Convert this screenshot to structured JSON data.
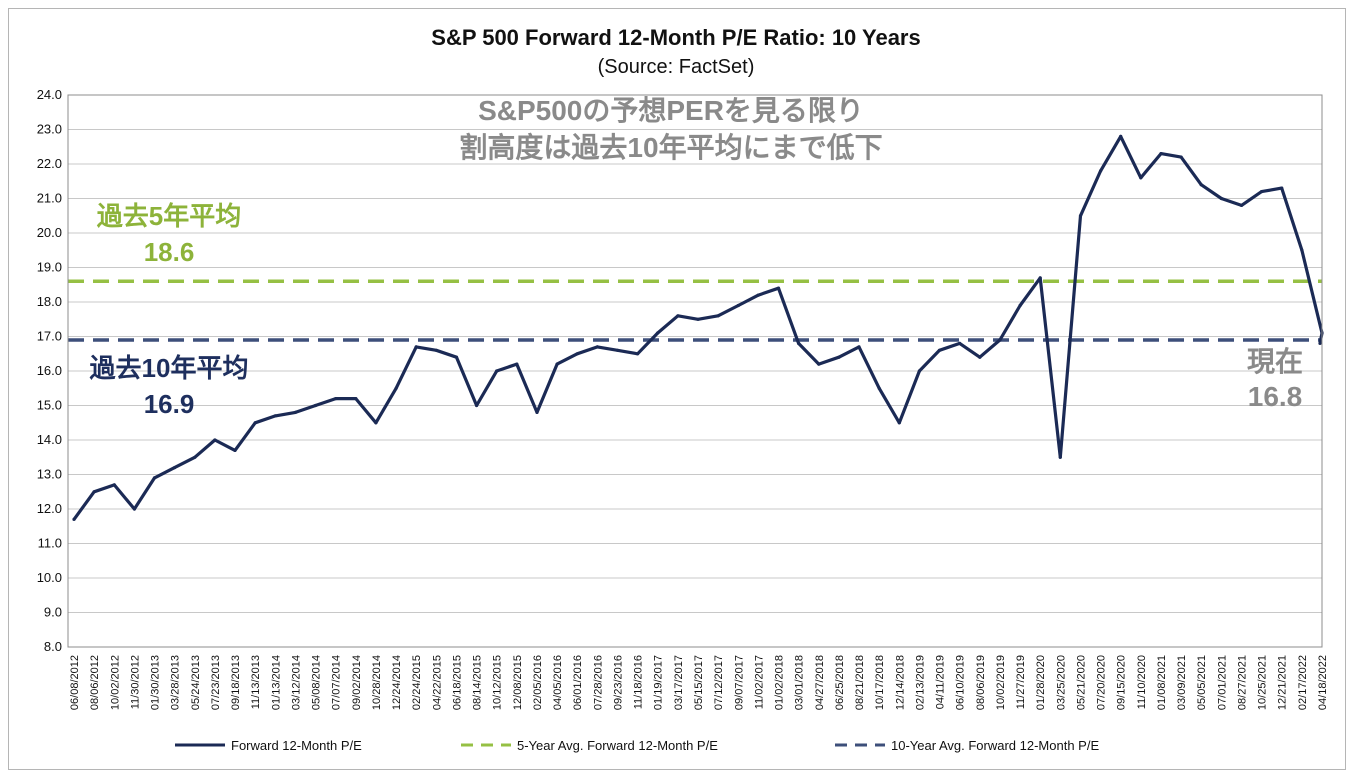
{
  "chart_data": {
    "type": "line",
    "title": "S&P 500 Forward 12-Month P/E Ratio: 10 Years",
    "subtitle": "(Source: FactSet)",
    "ylim": [
      8.0,
      24.0
    ],
    "yticks": [
      "24.0",
      "23.0",
      "22.0",
      "21.0",
      "20.0",
      "19.0",
      "18.0",
      "17.0",
      "16.0",
      "15.0",
      "14.0",
      "13.0",
      "12.0",
      "11.0",
      "10.0",
      "9.0",
      "8.0"
    ],
    "grid": true,
    "legend_position": "bottom",
    "x_tick_labels": [
      "06/08/2012",
      "08/06/2012",
      "10/02/2012",
      "11/30/2012",
      "01/30/2013",
      "03/28/2013",
      "05/24/2013",
      "07/23/2013",
      "09/18/2013",
      "11/13/2013",
      "01/13/2014",
      "03/12/2014",
      "05/08/2014",
      "07/07/2014",
      "09/02/2014",
      "10/28/2014",
      "12/24/2014",
      "02/24/2015",
      "04/22/2015",
      "06/18/2015",
      "08/14/2015",
      "10/12/2015",
      "12/08/2015",
      "02/05/2016",
      "04/05/2016",
      "06/01/2016",
      "07/28/2016",
      "09/23/2016",
      "11/18/2016",
      "01/19/2017",
      "03/17/2017",
      "05/15/2017",
      "07/12/2017",
      "09/07/2017",
      "11/02/2017",
      "01/02/2018",
      "03/01/2018",
      "04/27/2018",
      "06/25/2018",
      "08/21/2018",
      "10/17/2018",
      "12/14/2018",
      "02/13/2019",
      "04/11/2019",
      "06/10/2019",
      "08/06/2019",
      "10/02/2019",
      "11/27/2019",
      "01/28/2020",
      "03/25/2020",
      "05/21/2020",
      "07/20/2020",
      "09/15/2020",
      "11/10/2020",
      "01/08/2021",
      "03/09/2021",
      "05/05/2021",
      "07/01/2021",
      "08/27/2021",
      "10/25/2021",
      "12/21/2021",
      "02/17/2022",
      "04/18/2022"
    ],
    "series": [
      {
        "name": "Forward 12-Month P/E",
        "color": "#1b2a55",
        "style": "solid",
        "x": [
          "06/08/2012",
          "08/06/2012",
          "10/02/2012",
          "11/30/2012",
          "01/30/2013",
          "03/28/2013",
          "05/24/2013",
          "07/23/2013",
          "09/18/2013",
          "11/13/2013",
          "01/13/2014",
          "03/12/2014",
          "05/08/2014",
          "07/07/2014",
          "09/02/2014",
          "10/28/2014",
          "12/24/2014",
          "02/24/2015",
          "04/22/2015",
          "06/18/2015",
          "08/14/2015",
          "10/12/2015",
          "12/08/2015",
          "02/05/2016",
          "04/05/2016",
          "06/01/2016",
          "07/28/2016",
          "09/23/2016",
          "11/18/2016",
          "01/19/2017",
          "03/17/2017",
          "05/15/2017",
          "07/12/2017",
          "09/07/2017",
          "11/02/2017",
          "01/02/2018",
          "03/01/2018",
          "04/27/2018",
          "06/25/2018",
          "08/21/2018",
          "10/17/2018",
          "12/14/2018",
          "02/13/2019",
          "04/11/2019",
          "06/10/2019",
          "08/06/2019",
          "10/02/2019",
          "11/27/2019",
          "01/28/2020",
          "03/25/2020",
          "05/21/2020",
          "07/20/2020",
          "09/15/2020",
          "11/10/2020",
          "01/08/2021",
          "03/09/2021",
          "05/05/2021",
          "07/01/2021",
          "08/27/2021",
          "10/25/2021",
          "12/21/2021",
          "02/17/2022",
          "04/18/2022"
        ],
        "values": [
          11.7,
          12.5,
          12.7,
          12.0,
          12.9,
          13.2,
          13.5,
          14.0,
          13.7,
          14.5,
          14.7,
          14.8,
          15.0,
          15.2,
          15.2,
          14.5,
          15.5,
          16.7,
          16.6,
          16.4,
          15.0,
          16.0,
          16.2,
          14.8,
          16.2,
          16.5,
          16.7,
          16.6,
          16.5,
          17.1,
          17.6,
          17.5,
          17.6,
          17.9,
          18.2,
          18.4,
          16.8,
          16.2,
          16.4,
          16.7,
          15.5,
          14.5,
          16.0,
          16.6,
          16.8,
          16.4,
          16.9,
          17.9,
          18.7,
          13.5,
          20.5,
          21.8,
          22.8,
          21.6,
          22.3,
          22.2,
          21.4,
          21.0,
          20.8,
          21.2,
          21.3,
          19.5,
          17.1
        ],
        "end_value": 16.8
      },
      {
        "name": "5-Year Avg. Forward 12-Month P/E",
        "color": "#96c044",
        "style": "dashed",
        "constant": 18.6
      },
      {
        "name": "10-Year Avg. Forward 12-Month P/E",
        "color": "#3d4f7a",
        "style": "dashed",
        "constant": 16.9
      }
    ],
    "annotations": {
      "headline_line1": "S&P500の予想PERを見る限り",
      "headline_line2": "割高度は過去10年平均にまで低下",
      "five_year_label": "過去5年平均",
      "five_year_value": "18.6",
      "ten_year_label": "過去10年平均",
      "ten_year_value": "16.9",
      "current_label": "現在",
      "current_value": "16.8"
    },
    "colors": {
      "annotation_gray": "#8a8a8a",
      "annotation_green": "#8db33a",
      "annotation_navy": "#1e2f5e",
      "grid": "#c8c8c8"
    }
  }
}
